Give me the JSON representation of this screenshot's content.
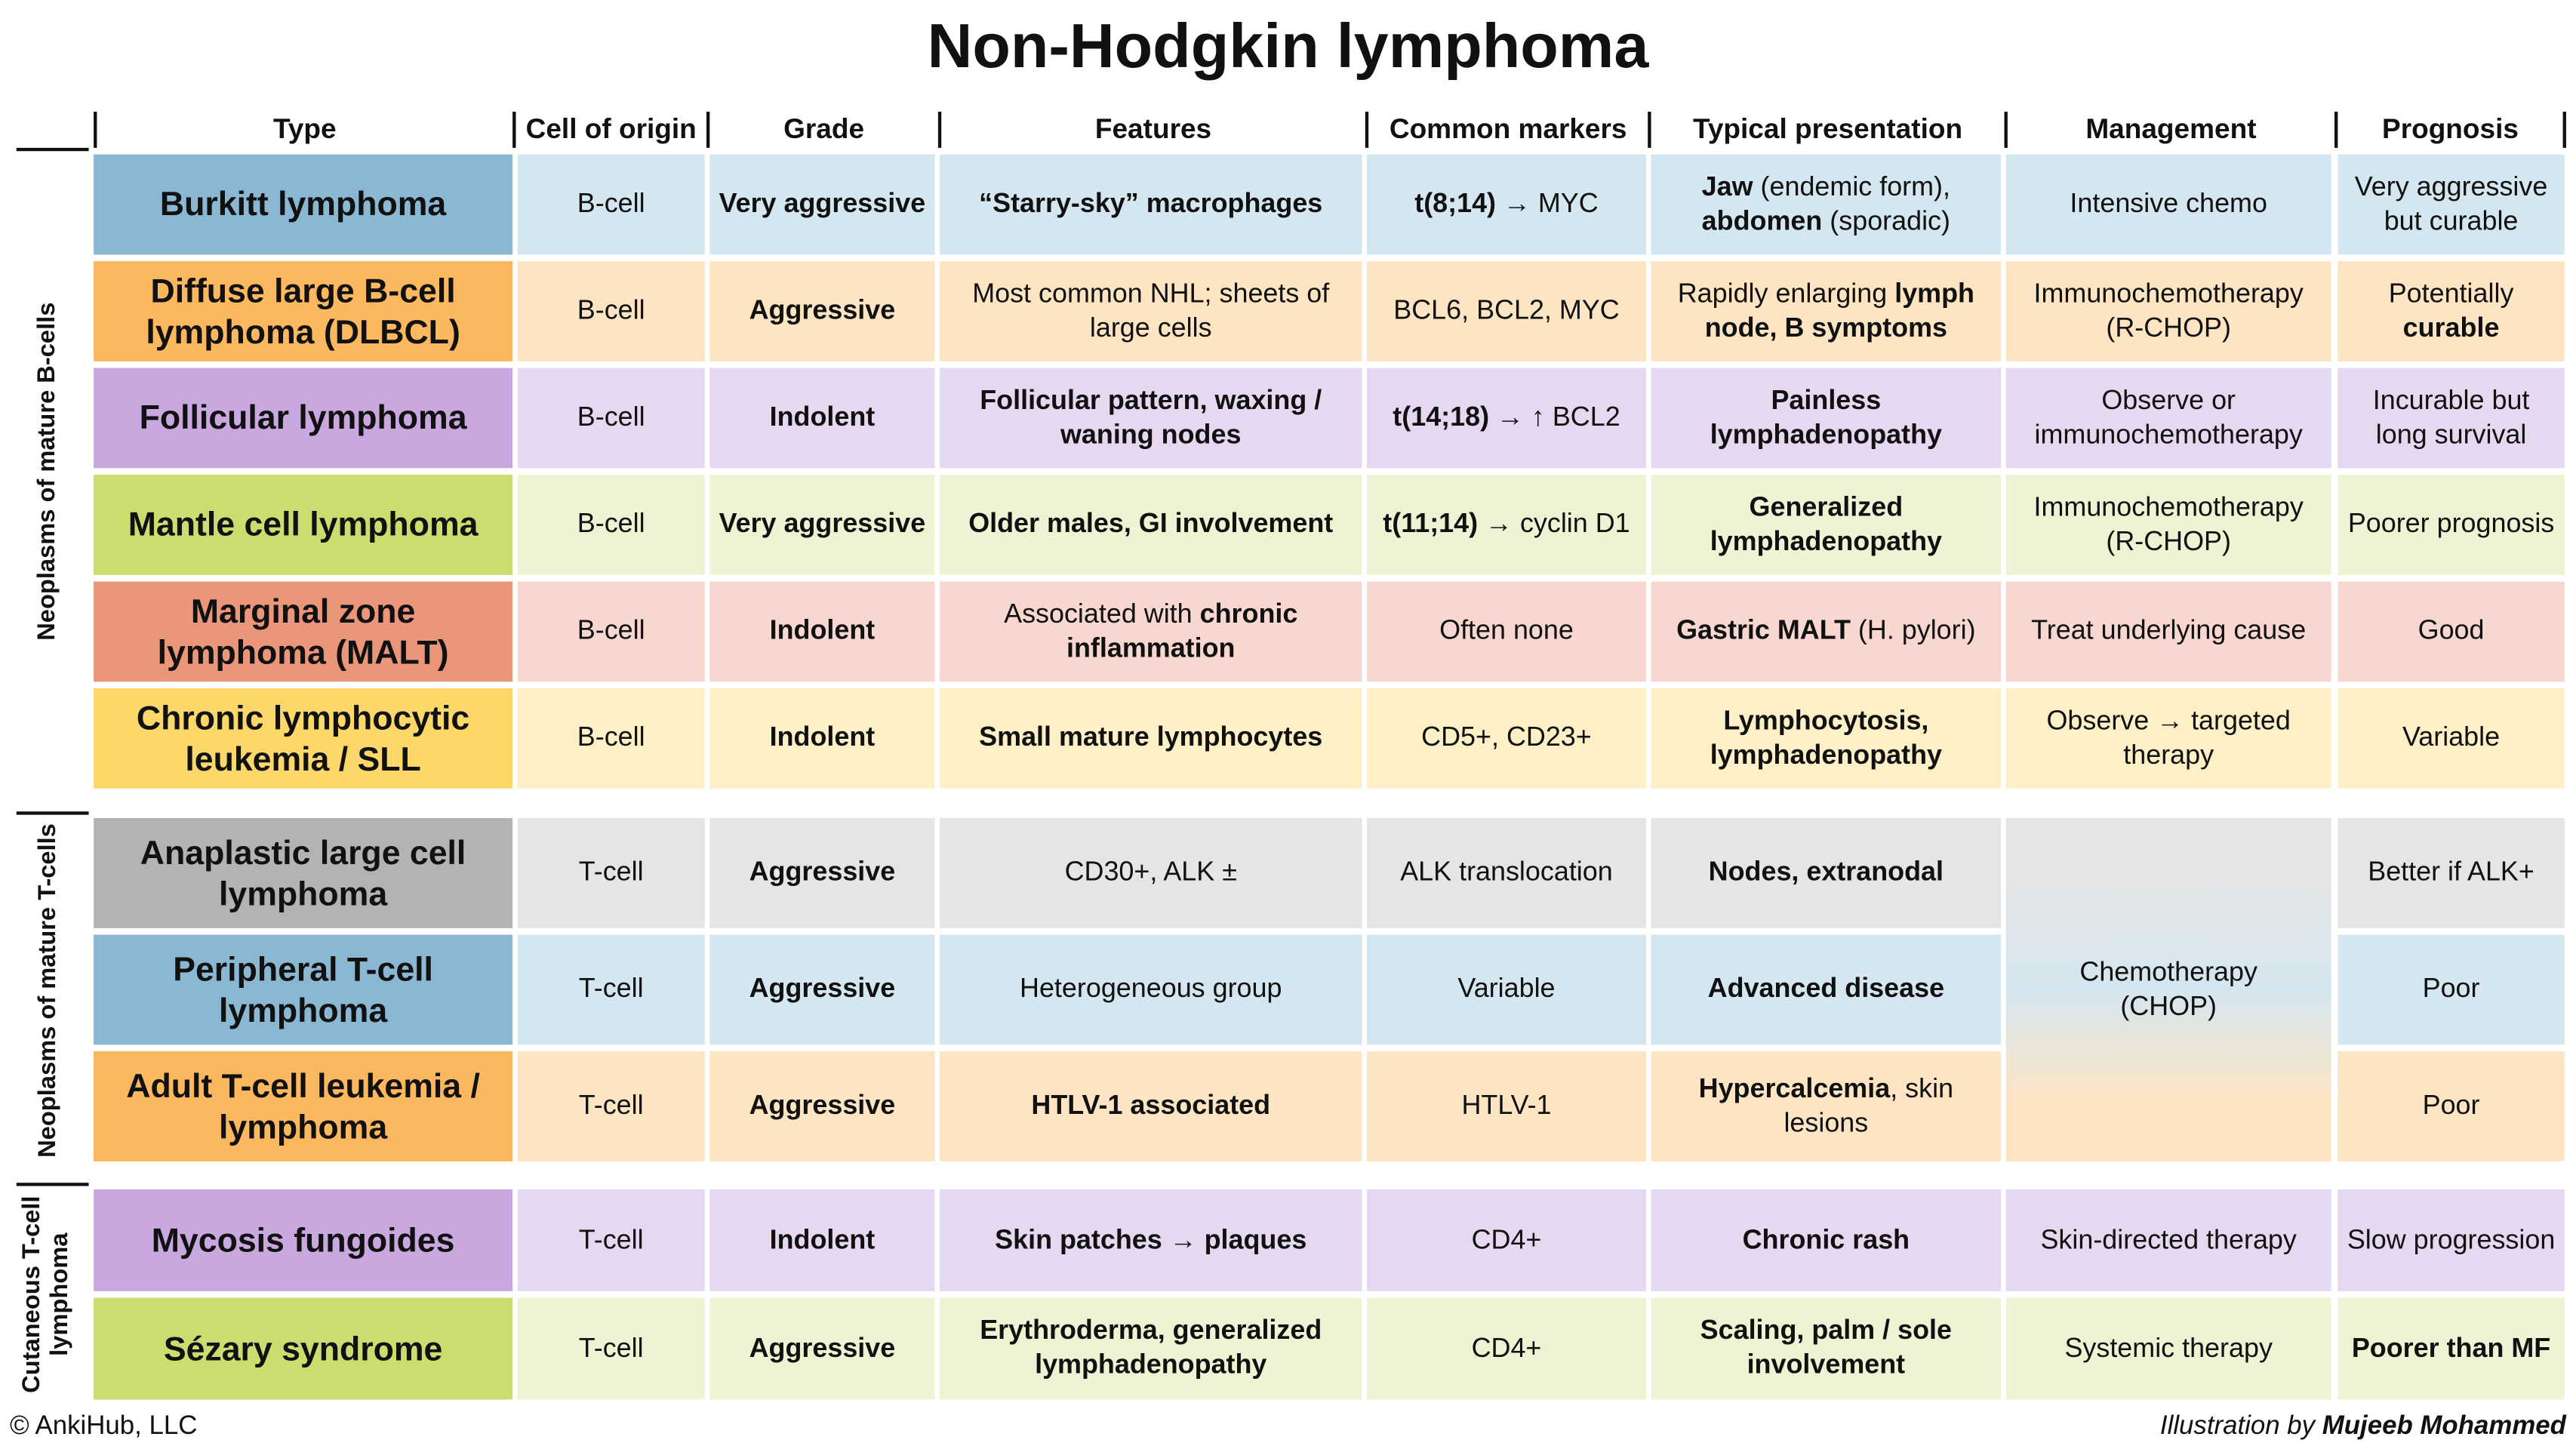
{
  "title": "Non-Hodgkin lymphoma",
  "columns": [
    {
      "label": "Type",
      "bold": true
    },
    {
      "label": "Cell of origin"
    },
    {
      "label": "Grade",
      "bold": true
    },
    {
      "label": "Features"
    },
    {
      "label": "Common markers"
    },
    {
      "label": "Typical presentation"
    },
    {
      "label": "Management"
    },
    {
      "label": "Prognosis"
    }
  ],
  "groups": [
    {
      "label": "Neoplasms of mature B-cells",
      "rows": [
        {
          "color": "#8ab8d3",
          "tint": "#d4e6f0",
          "cells": [
            "Burkitt lymphoma",
            "B-cell",
            "Very aggressive",
            {
              "text": "“Starry-sky” macrophages",
              "bold": true
            },
            [
              {
                "text": "t(8;14)",
                "bold": true
              },
              {
                "text": " → MYC"
              }
            ],
            [
              {
                "text": "Jaw",
                "bold": true
              },
              {
                "text": " (endemic form), "
              },
              {
                "text": "abdomen",
                "bold": true
              },
              {
                "text": " (sporadic)"
              }
            ],
            "Intensive chemo",
            "Very aggressive but curable"
          ]
        },
        {
          "color": "#fbb85f",
          "tint": "#fde5c4",
          "cells": [
            "Diffuse large B-cell lymphoma (DLBCL)",
            "B-cell",
            "Aggressive",
            "Most common NHL; sheets of large cells",
            "BCL6, BCL2, MYC",
            [
              {
                "text": "Rapidly enlarging "
              },
              {
                "text": "lymph node, B symptoms",
                "bold": true
              }
            ],
            "Immunochemotherapy (R-CHOP)",
            [
              {
                "text": "Potentially "
              },
              {
                "text": "curable",
                "bold": true
              }
            ]
          ]
        },
        {
          "color": "#c8a8de",
          "tint": "#e6d8f1",
          "cells": [
            "Follicular lymphoma",
            "B-cell",
            "Indolent",
            {
              "text": "Follicular pattern, waxing / waning nodes",
              "bold": true
            },
            [
              {
                "text": "t(14;18)",
                "bold": true
              },
              {
                "text": " → ↑ BCL2"
              }
            ],
            {
              "text": "Painless lymphadenopathy",
              "bold": true
            },
            "Observe or immunochemotherapy",
            "Incurable but long survival"
          ]
        },
        {
          "color": "#cddc6e",
          "tint": "#eef3d3",
          "cells": [
            "Mantle cell lymphoma",
            "B-cell",
            "Very aggressive",
            {
              "text": "Older males, GI involvement",
              "bold": true
            },
            [
              {
                "text": "t(11;14)",
                "bold": true
              },
              {
                "text": " → cyclin D1"
              }
            ],
            {
              "text": "Generalized lymphadenopathy",
              "bold": true
            },
            "Immunochemotherapy (R-CHOP)",
            "Poorer prognosis"
          ]
        },
        {
          "color": "#e9967a",
          "tint": "#f7d7cf",
          "cells": [
            "Marginal zone lymphoma (MALT)",
            "B-cell",
            "Indolent",
            [
              {
                "text": "Associated with "
              },
              {
                "text": "chronic inflammation",
                "bold": true
              }
            ],
            "Often none",
            [
              {
                "text": "Gastric MALT",
                "bold": true
              },
              {
                "text": " (H. pylori)"
              }
            ],
            "Treat underlying cause",
            "Good"
          ]
        },
        {
          "color": "#fcd86a",
          "tint": "#fdf0c7",
          "cells": [
            "Chronic lymphocytic leukemia / SLL",
            "B-cell",
            "Indolent",
            {
              "text": "Small mature lymphocytes",
              "bold": true
            },
            "CD5+, CD23+",
            {
              "text": "Lymphocytosis, lymphadenopathy",
              "bold": true
            },
            "Observe → targeted therapy",
            "Variable"
          ]
        }
      ]
    },
    {
      "label": "Neoplasms of mature T-cells",
      "management": "Chemotherapy (CHOP)",
      "rows": [
        {
          "color": "#b3b3b3",
          "tint": "#e5e5e5",
          "cells": [
            "Anaplastic large cell lymphoma",
            "T-cell",
            "Aggressive",
            "CD30+, ALK ±",
            "ALK translocation",
            {
              "text": "Nodes, extranodal",
              "bold": true
            },
            null,
            "Better if ALK+"
          ]
        },
        {
          "color": "#8ab8d3",
          "tint": "#d4e6f0",
          "cells": [
            "Peripheral T-cell lymphoma",
            "T-cell",
            "Aggressive",
            "Heterogeneous group",
            "Variable",
            {
              "text": "Advanced disease",
              "bold": true
            },
            null,
            "Poor"
          ]
        },
        {
          "color": "#fbb85f",
          "tint": "#fde5c4",
          "cells": [
            "Adult T-cell leukemia / lymphoma",
            "T-cell",
            "Aggressive",
            {
              "text": "HTLV-1 associated",
              "bold": true
            },
            "HTLV-1",
            [
              {
                "text": "Hypercalcemia",
                "bold": true
              },
              {
                "text": ", skin lesions"
              }
            ],
            null,
            "Poor"
          ]
        }
      ]
    },
    {
      "label": "Cutaneous T-cell lymphoma",
      "rows": [
        {
          "color": "#c8a8de",
          "tint": "#e6d8f1",
          "cells": [
            "Mycosis fungoides",
            "T-cell",
            "Indolent",
            {
              "text": "Skin patches → plaques",
              "bold": true
            },
            "CD4+",
            {
              "text": "Chronic rash",
              "bold": true
            },
            "Skin-directed therapy",
            "Slow progression"
          ]
        },
        {
          "color": "#cddc6e",
          "tint": "#eef3d3",
          "cells": [
            "Sézary syndrome",
            "T-cell",
            "Aggressive",
            {
              "text": "Erythroderma, generalized lymphadenopathy",
              "bold": true
            },
            "CD4+",
            {
              "text": "Scaling, palm / sole involvement",
              "bold": true
            },
            "Systemic therapy",
            {
              "text": "Poorer than MF",
              "bold": true
            }
          ]
        }
      ]
    }
  ],
  "footer": {
    "left": "© AnkiHub, LLC",
    "right": [
      {
        "text": "Illustration by "
      },
      {
        "text": "Mujeeb Mohammed",
        "bold": true
      }
    ]
  }
}
